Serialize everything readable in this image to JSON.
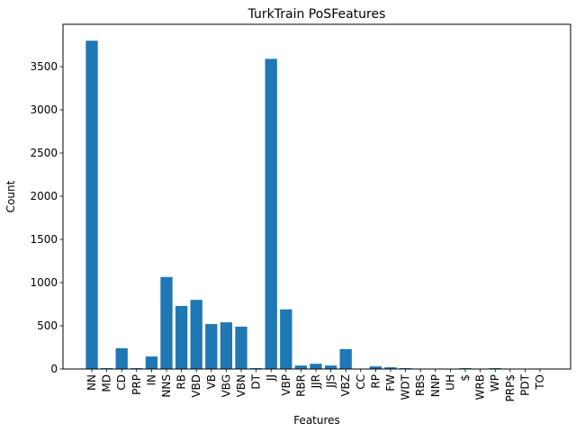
{
  "chart_data": {
    "type": "bar",
    "title": "TurkTrain PoSFeatures",
    "xlabel": "Features",
    "ylabel": "Count",
    "categories": [
      "NN",
      "MD",
      "CD",
      "PRP",
      "IN",
      "NNS",
      "RB",
      "VBD",
      "VB",
      "VBG",
      "VBN",
      "DT",
      "JJ",
      "VBP",
      "RBR",
      "JJR",
      "JJS",
      "VBZ",
      "CC",
      "RP",
      "FW",
      "WDT",
      "RBS",
      "NNP",
      "UH",
      "$",
      "WRB",
      "WP",
      "PRP$",
      "PDT",
      "TO"
    ],
    "values": [
      3800,
      10,
      240,
      10,
      145,
      1065,
      730,
      800,
      520,
      540,
      490,
      10,
      3590,
      690,
      40,
      60,
      40,
      230,
      5,
      30,
      20,
      10,
      2,
      2,
      2,
      10,
      2,
      10,
      2,
      2,
      2
    ],
    "ylim": [
      0,
      3990
    ],
    "yticks": [
      0,
      500,
      1000,
      1500,
      2000,
      2500,
      3000,
      3500
    ],
    "grid": false,
    "bar_color": "#1f77b4"
  }
}
